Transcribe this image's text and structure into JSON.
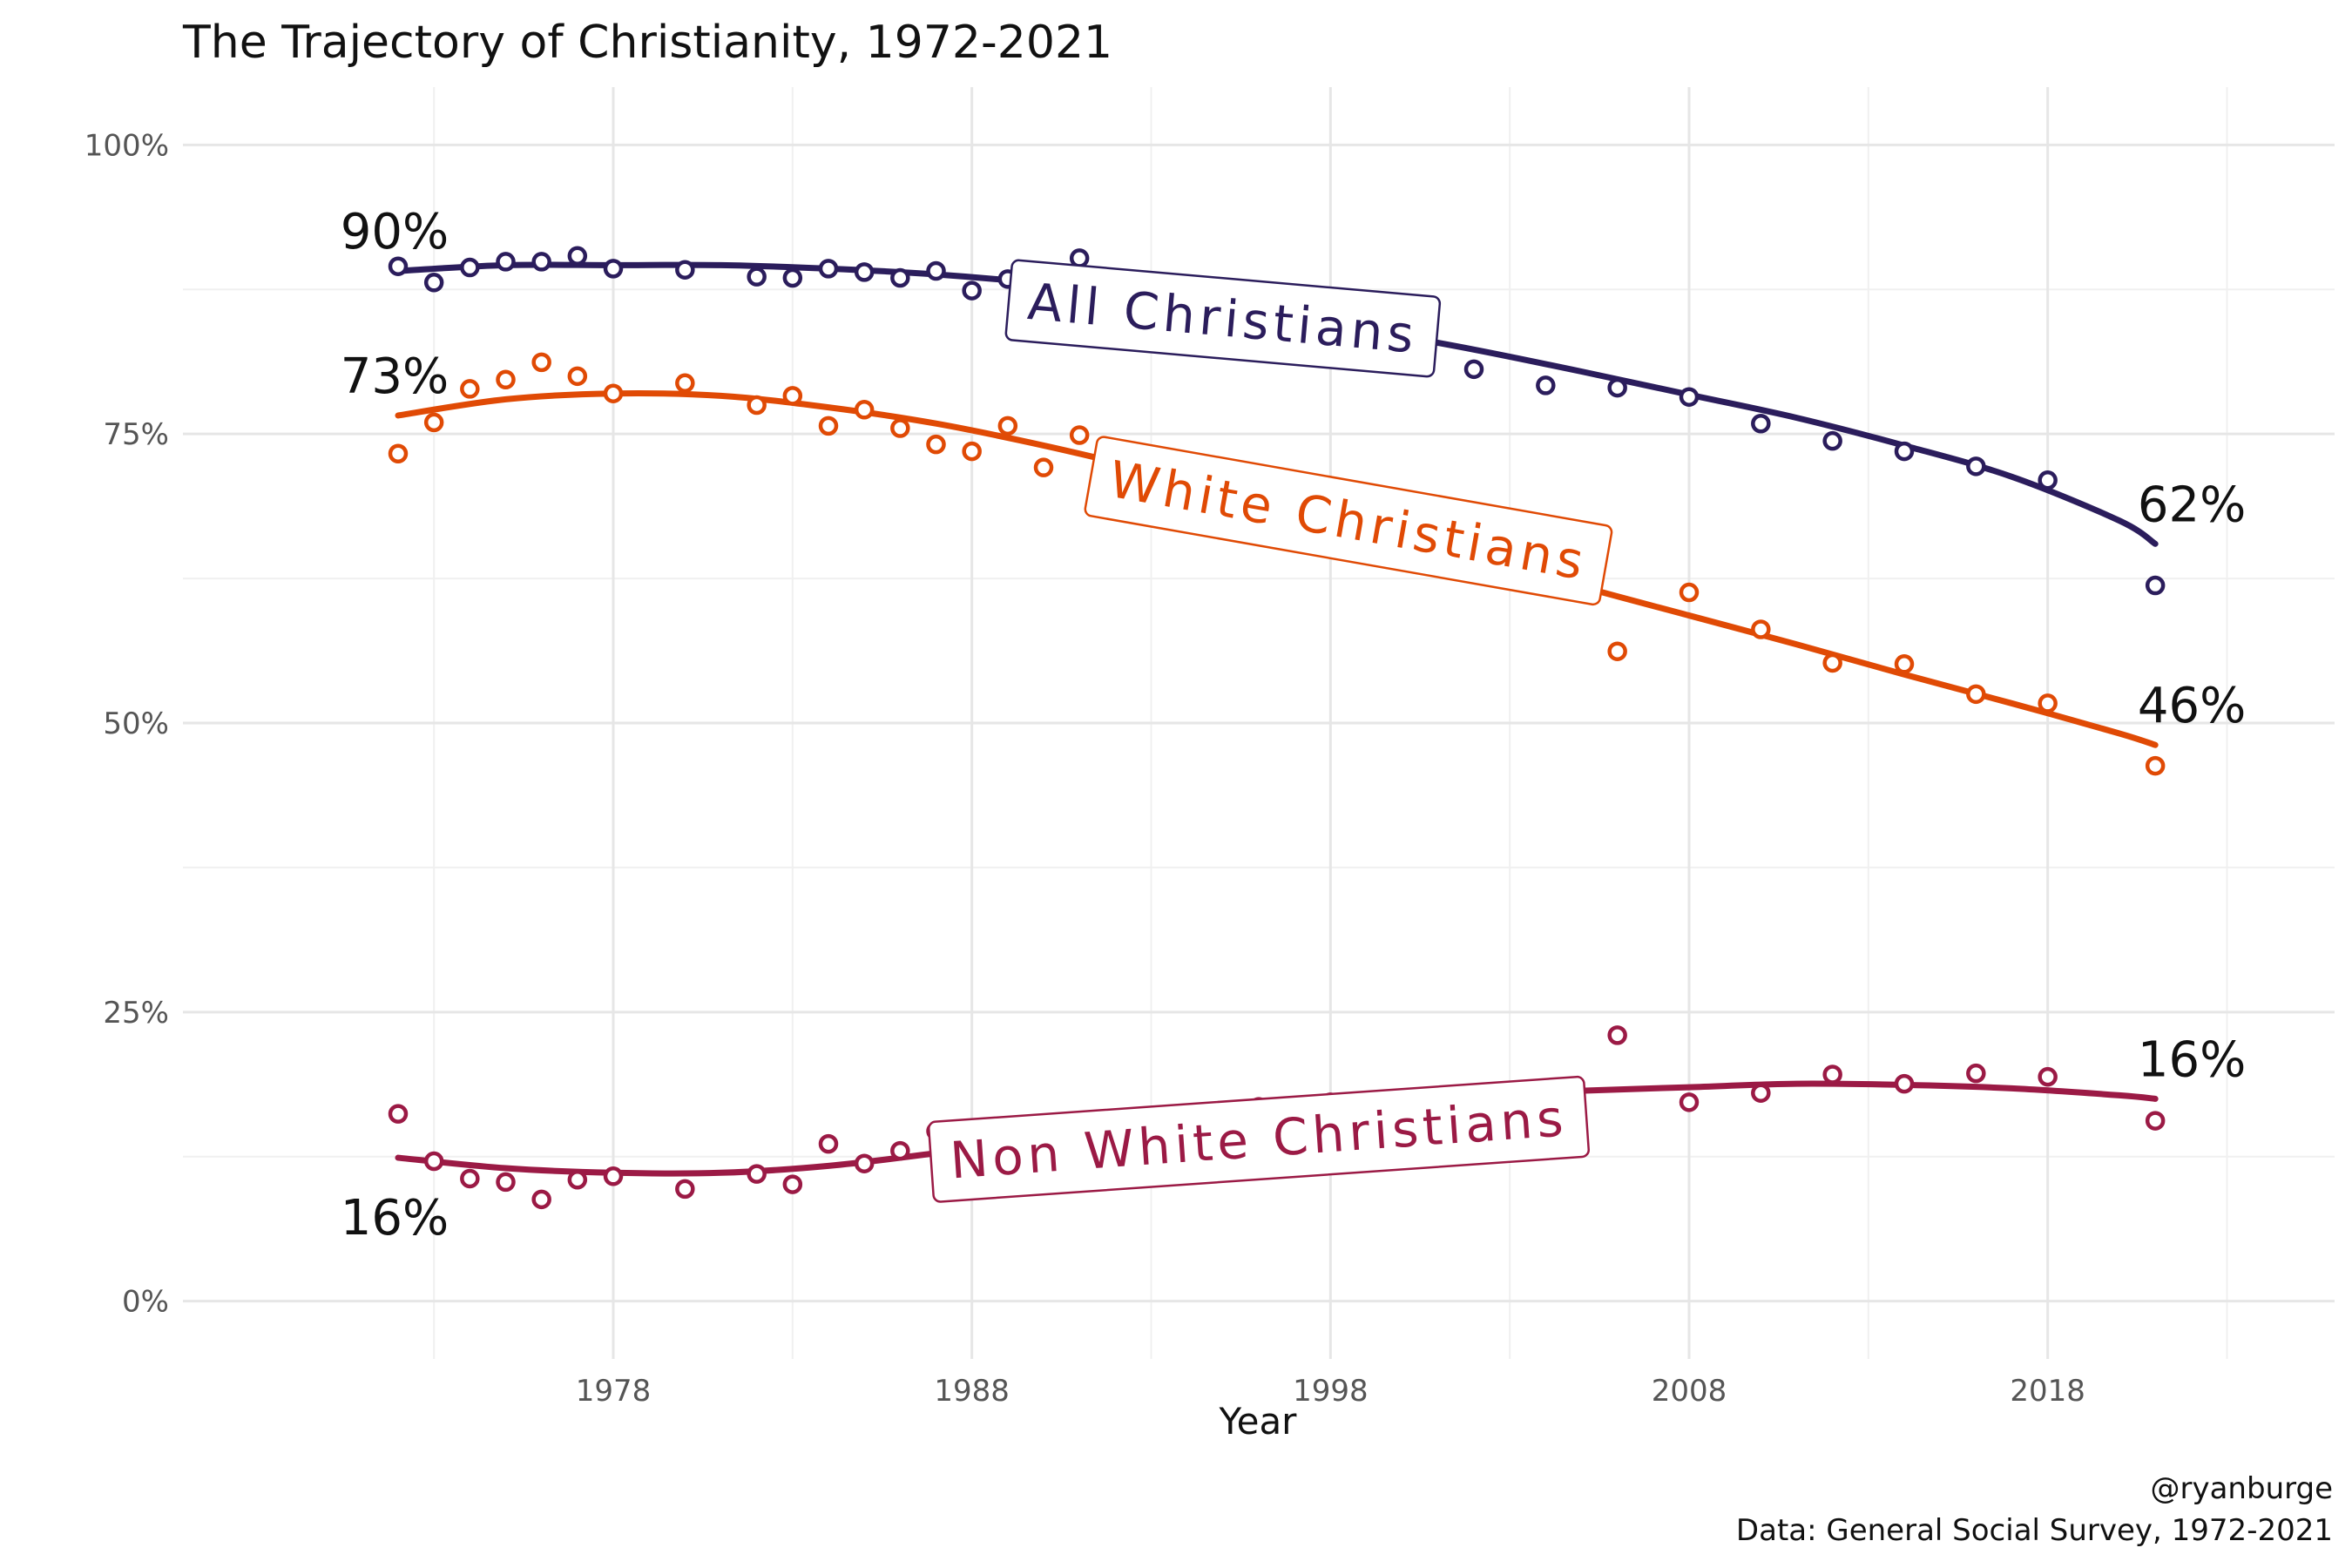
{
  "chart_data": {
    "type": "scatter",
    "title": "The Trajectory of Christianity, 1972-2021",
    "xlabel": "Year",
    "ylabel": "",
    "xlim": [
      1966,
      2026
    ],
    "ylim": [
      -5,
      105
    ],
    "x_ticks": [
      1978,
      1988,
      1998,
      2008,
      2018
    ],
    "x_tick_labels": [
      "1978",
      "1988",
      "1998",
      "2008",
      "2018"
    ],
    "y_ticks": [
      0,
      25,
      50,
      75,
      100
    ],
    "y_tick_labels": [
      "0%",
      "25%",
      "50%",
      "75%",
      "100%"
    ],
    "grid": true,
    "legend": "none",
    "caption": [
      "@ryanburge",
      "Data: General Social Survey, 1972-2021"
    ],
    "series": [
      {
        "name": "All Christians",
        "color": "#2b1d5c",
        "x": [
          1972,
          1973,
          1974,
          1975,
          1976,
          1977,
          1978,
          1980,
          1982,
          1983,
          1984,
          1985,
          1986,
          1987,
          1988,
          1989,
          1990,
          1991,
          1993,
          1994,
          1996,
          1998,
          2000,
          2002,
          2004,
          2006,
          2008,
          2010,
          2012,
          2014,
          2016,
          2018,
          2021
        ],
        "values": [
          89.5,
          88.1,
          89.4,
          89.9,
          89.9,
          90.4,
          89.3,
          89.2,
          88.6,
          88.5,
          89.3,
          89.0,
          88.5,
          89.1,
          87.4,
          88.4,
          87.0,
          90.2,
          86.5,
          85.5,
          84.0,
          83.0,
          81.5,
          80.6,
          79.2,
          79.0,
          78.2,
          75.9,
          74.4,
          73.5,
          72.2,
          71.0,
          61.9
        ],
        "trend_x": [
          1972,
          1975,
          1978,
          1981,
          1984,
          1987,
          1990,
          1993,
          1996,
          1999,
          2002,
          2005,
          2008,
          2011,
          2014,
          2017,
          2020,
          2021
        ],
        "trend_y": [
          89.1,
          89.6,
          89.6,
          89.6,
          89.3,
          88.8,
          88.0,
          86.9,
          85.6,
          84.0,
          82.3,
          80.4,
          78.4,
          76.4,
          74.0,
          71.3,
          67.5,
          65.5
        ],
        "start_label": "90%",
        "end_label": "62%",
        "label_text": "All Christians",
        "label_box": {
          "x": 1995.0,
          "y": 85.0,
          "angle": 5
        }
      },
      {
        "name": "White Christians",
        "color": "#e04a05",
        "x": [
          1972,
          1973,
          1974,
          1975,
          1976,
          1977,
          1978,
          1980,
          1982,
          1983,
          1984,
          1985,
          1986,
          1987,
          1988,
          1989,
          1990,
          1991,
          1993,
          1994,
          1996,
          1998,
          2000,
          2002,
          2004,
          2006,
          2008,
          2010,
          2012,
          2014,
          2016,
          2018,
          2021
        ],
        "values": [
          73.3,
          76.0,
          78.9,
          79.7,
          81.2,
          80.0,
          78.5,
          79.4,
          77.5,
          78.3,
          75.7,
          77.1,
          75.5,
          74.1,
          73.5,
          75.7,
          72.1,
          74.9,
          71.0,
          70.0,
          68.5,
          67.0,
          65.5,
          64.5,
          63.2,
          56.2,
          61.3,
          58.1,
          55.2,
          55.1,
          52.5,
          51.7,
          46.3
        ],
        "trend_x": [
          1972,
          1975,
          1978,
          1981,
          1984,
          1987,
          1990,
          1993,
          1996,
          1999,
          2002,
          2005,
          2008,
          2011,
          2014,
          2017,
          2020,
          2021
        ],
        "trend_y": [
          76.6,
          78.0,
          78.5,
          78.3,
          77.3,
          75.9,
          74.0,
          71.8,
          69.4,
          67.0,
          64.5,
          61.8,
          59.3,
          56.8,
          54.2,
          51.7,
          49.1,
          48.1
        ],
        "start_label": "73%",
        "end_label": "46%",
        "label_text": "White Christians",
        "label_box": {
          "x": 1998.5,
          "y": 67.5,
          "angle": 10
        }
      },
      {
        "name": "Non White Christians",
        "color": "#9b1a45",
        "x": [
          1972,
          1973,
          1974,
          1975,
          1976,
          1977,
          1978,
          1980,
          1982,
          1983,
          1984,
          1985,
          1986,
          1987,
          1988,
          1989,
          1990,
          1991,
          1993,
          1994,
          1996,
          1998,
          2000,
          2002,
          2004,
          2006,
          2008,
          2010,
          2012,
          2014,
          2016,
          2018,
          2021
        ],
        "values": [
          16.2,
          12.1,
          10.6,
          10.3,
          8.8,
          10.5,
          10.8,
          9.7,
          11.0,
          10.1,
          13.6,
          11.9,
          13.0,
          14.7,
          14.1,
          13.0,
          14.8,
          15.3,
          15.8,
          16.2,
          16.8,
          17.2,
          17.5,
          17.8,
          18.0,
          23.0,
          17.2,
          18.0,
          19.6,
          18.8,
          19.7,
          19.4,
          15.6
        ],
        "trend_x": [
          1972,
          1975,
          1978,
          1981,
          1984,
          1987,
          1990,
          1993,
          1996,
          1999,
          2002,
          2005,
          2008,
          2011,
          2014,
          2017,
          2020,
          2021
        ],
        "trend_y": [
          12.4,
          11.5,
          11.1,
          11.1,
          11.7,
          12.8,
          14.1,
          15.4,
          16.5,
          17.3,
          17.8,
          18.2,
          18.5,
          18.8,
          18.7,
          18.4,
          17.8,
          17.5
        ],
        "start_label": "16%",
        "end_label": "16%",
        "label_text": "Non White Christians",
        "label_box": {
          "x": 1996.0,
          "y": 14.0,
          "angle": -4
        }
      }
    ]
  }
}
